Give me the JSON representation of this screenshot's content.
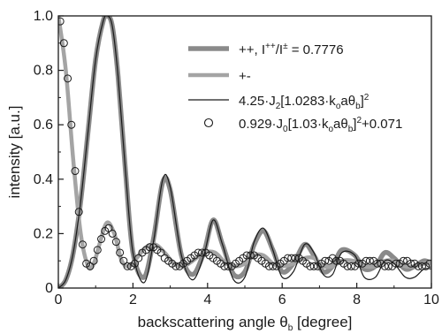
{
  "chart_data": {
    "type": "line",
    "xlabel": {
      "main": "backscattering angle θ",
      "sub": "b",
      "unit": " [degree]"
    },
    "ylabel": "intensity [a.u.]",
    "xlim": [
      0,
      10
    ],
    "ylim": [
      0,
      1.0
    ],
    "x_ticks": [
      "0",
      "2",
      "4",
      "6",
      "8",
      "10"
    ],
    "y_ticks": [
      "0",
      "0.2",
      "0.4",
      "0.6",
      "0.8",
      "1.0"
    ],
    "grid": false,
    "legend_position": "top-right",
    "legend": [
      {
        "pre": "++, I",
        "sup1": "++",
        "mid": "/I",
        "sup2": "±",
        "post": " = 0.7776"
      },
      {
        "pre": "+-"
      },
      {
        "pre": "4.25·J",
        "sub1": "2",
        "mid": "[1.0283·k",
        "sub2": "o",
        "mid2": "aθ",
        "sub3": "b",
        "post": "]",
        "sup": "2"
      },
      {
        "pre": "0.929·J",
        "sub1": "0",
        "mid": "[1.03·k",
        "sub2": "o",
        "mid2": "aθ",
        "sub3": "b",
        "post": "]",
        "sup": "2",
        "post2": "+0.071"
      }
    ],
    "series": [
      {
        "style": "thick-gray-band",
        "x": [
          0,
          0.2,
          0.4,
          0.6,
          0.8,
          1.0,
          1.2,
          1.32,
          1.45,
          1.6,
          1.8,
          2.0,
          2.3,
          2.55,
          2.8,
          3.0,
          3.3,
          3.6,
          3.9,
          4.15,
          4.4,
          4.7,
          5.0,
          5.25,
          5.5,
          5.75,
          6.0,
          6.3,
          6.6,
          6.85,
          7.1,
          7.35,
          7.6,
          7.95,
          8.2,
          8.5,
          8.75,
          9.0,
          9.3,
          9.55,
          9.8,
          10.0
        ],
        "y": [
          0,
          0.03,
          0.13,
          0.32,
          0.58,
          0.84,
          0.98,
          1.0,
          0.96,
          0.78,
          0.43,
          0.13,
          0.04,
          0.18,
          0.39,
          0.36,
          0.12,
          0.05,
          0.13,
          0.25,
          0.16,
          0.05,
          0.06,
          0.16,
          0.21,
          0.14,
          0.06,
          0.09,
          0.16,
          0.12,
          0.06,
          0.08,
          0.14,
          0.12,
          0.07,
          0.08,
          0.13,
          0.11,
          0.07,
          0.08,
          0.1,
          0.09
        ]
      },
      {
        "style": "gray-band",
        "x": [
          0,
          0.2,
          0.4,
          0.6,
          0.8,
          0.95,
          1.1,
          1.3,
          1.5,
          1.7,
          1.9,
          2.1,
          2.35,
          2.6,
          2.85,
          3.1,
          3.35,
          3.6,
          3.9,
          4.2,
          4.5,
          4.75,
          5.0,
          5.25,
          5.5,
          5.75,
          6.0,
          6.3,
          6.6,
          6.85,
          7.1,
          7.35,
          7.6,
          7.9,
          8.2,
          8.5,
          8.75,
          9.0,
          9.3,
          9.55,
          9.8,
          10.0
        ],
        "y": [
          1.0,
          0.8,
          0.47,
          0.2,
          0.08,
          0.09,
          0.16,
          0.24,
          0.2,
          0.1,
          0.08,
          0.11,
          0.15,
          0.16,
          0.13,
          0.09,
          0.08,
          0.1,
          0.13,
          0.13,
          0.09,
          0.08,
          0.09,
          0.12,
          0.12,
          0.09,
          0.08,
          0.09,
          0.11,
          0.11,
          0.08,
          0.08,
          0.1,
          0.1,
          0.08,
          0.08,
          0.1,
          0.1,
          0.08,
          0.08,
          0.09,
          0.09
        ]
      },
      {
        "style": "thin-black-line",
        "x": [
          0,
          0.2,
          0.4,
          0.6,
          0.8,
          1.0,
          1.2,
          1.32,
          1.45,
          1.6,
          1.8,
          2.0,
          2.3,
          2.55,
          2.8,
          3.0,
          3.3,
          3.6,
          3.9,
          4.15,
          4.4,
          4.7,
          5.0,
          5.25,
          5.5,
          5.75,
          6.0,
          6.3,
          6.6,
          6.85,
          7.1,
          7.35,
          7.6,
          7.95,
          8.2,
          8.5,
          8.75,
          9.0,
          9.3,
          9.55,
          9.8,
          10.0
        ],
        "y": [
          0,
          0.03,
          0.13,
          0.32,
          0.58,
          0.84,
          0.98,
          1.0,
          0.96,
          0.78,
          0.43,
          0.13,
          0.02,
          0.17,
          0.4,
          0.37,
          0.12,
          0.03,
          0.12,
          0.25,
          0.16,
          0.03,
          0.04,
          0.17,
          0.22,
          0.14,
          0.04,
          0.06,
          0.16,
          0.13,
          0.05,
          0.05,
          0.13,
          0.12,
          0.04,
          0.04,
          0.1,
          0.09,
          0.04,
          0.04,
          0.07,
          0.07
        ]
      },
      {
        "style": "open-circles",
        "x": [
          0.05,
          0.15,
          0.25,
          0.35,
          0.45,
          0.55,
          0.65,
          0.75,
          0.85,
          0.95,
          1.05,
          1.15,
          1.25,
          1.35,
          1.45,
          1.55,
          1.65,
          1.75,
          1.85,
          1.95,
          2.05,
          2.15,
          2.25,
          2.35,
          2.45,
          2.55,
          2.65,
          2.75,
          2.85,
          2.95,
          3.05,
          3.15,
          3.25,
          3.35,
          3.45,
          3.55,
          3.65,
          3.75,
          3.85,
          3.95,
          4.05,
          4.15,
          4.25,
          4.35,
          4.45,
          4.55,
          4.65,
          4.75,
          4.85,
          4.95,
          5.05,
          5.15,
          5.25,
          5.35,
          5.45,
          5.55,
          5.65,
          5.75,
          5.85,
          5.95,
          6.05,
          6.15,
          6.25,
          6.35,
          6.45,
          6.55,
          6.65,
          6.75,
          6.85,
          6.95,
          7.05,
          7.15,
          7.25,
          7.35,
          7.45,
          7.55,
          7.65,
          7.75,
          7.85,
          7.95,
          8.05,
          8.15,
          8.25,
          8.35,
          8.45,
          8.55,
          8.65,
          8.75,
          8.85,
          8.95,
          9.05,
          9.15,
          9.25,
          9.35,
          9.45,
          9.55,
          9.65,
          9.75,
          9.85,
          9.95
        ],
        "y": [
          0.98,
          0.9,
          0.77,
          0.6,
          0.43,
          0.28,
          0.16,
          0.09,
          0.08,
          0.1,
          0.14,
          0.18,
          0.21,
          0.22,
          0.2,
          0.17,
          0.13,
          0.1,
          0.08,
          0.08,
          0.09,
          0.11,
          0.13,
          0.14,
          0.15,
          0.15,
          0.14,
          0.13,
          0.11,
          0.1,
          0.09,
          0.08,
          0.08,
          0.09,
          0.1,
          0.11,
          0.12,
          0.13,
          0.13,
          0.13,
          0.12,
          0.11,
          0.1,
          0.09,
          0.08,
          0.08,
          0.08,
          0.09,
          0.1,
          0.11,
          0.12,
          0.12,
          0.12,
          0.11,
          0.1,
          0.09,
          0.08,
          0.08,
          0.08,
          0.09,
          0.1,
          0.11,
          0.11,
          0.11,
          0.11,
          0.1,
          0.09,
          0.08,
          0.08,
          0.08,
          0.09,
          0.1,
          0.1,
          0.11,
          0.1,
          0.1,
          0.09,
          0.08,
          0.08,
          0.08,
          0.09,
          0.09,
          0.1,
          0.1,
          0.1,
          0.09,
          0.09,
          0.08,
          0.08,
          0.08,
          0.09,
          0.09,
          0.1,
          0.1,
          0.09,
          0.09,
          0.08,
          0.08,
          0.08,
          0.09
        ]
      }
    ]
  }
}
